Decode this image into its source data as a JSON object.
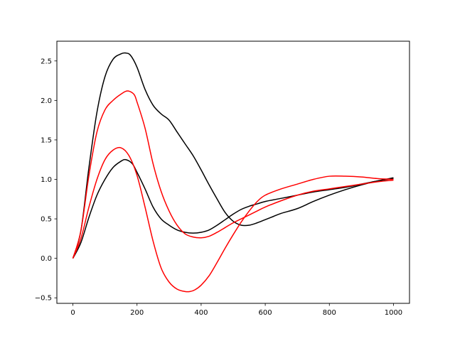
{
  "chart_data": {
    "type": "line",
    "title": "",
    "xlabel": "",
    "ylabel": "",
    "xlim": [
      -50,
      1050
    ],
    "ylim": [
      -0.57,
      2.75
    ],
    "grid": false,
    "legend": null,
    "xticks": [
      0,
      200,
      400,
      600,
      800,
      1000
    ],
    "yticks": [
      -0.5,
      0.0,
      0.5,
      1.0,
      1.5,
      2.0,
      2.5
    ],
    "xtick_labels": [
      "0",
      "200",
      "400",
      "600",
      "800",
      "1000"
    ],
    "ytick_labels": [
      "−0.5",
      "0.0",
      "0.5",
      "1.0",
      "1.5",
      "2.0",
      "2.5"
    ],
    "series": [
      {
        "color": "#000000",
        "x": [
          0,
          25,
          50,
          75,
          100,
          125,
          150,
          165,
          180,
          200,
          225,
          250,
          275,
          300,
          325,
          350,
          375,
          400,
          425,
          450,
          475,
          500,
          525,
          550,
          575,
          600,
          625,
          650,
          700,
          750,
          800,
          850,
          900,
          950,
          1000
        ],
        "y": [
          0,
          0.35,
          1.15,
          1.85,
          2.3,
          2.52,
          2.59,
          2.6,
          2.57,
          2.42,
          2.14,
          1.94,
          1.83,
          1.75,
          1.6,
          1.45,
          1.3,
          1.12,
          0.93,
          0.75,
          0.58,
          0.47,
          0.42,
          0.42,
          0.45,
          0.49,
          0.53,
          0.57,
          0.63,
          0.72,
          0.8,
          0.87,
          0.93,
          0.98,
          1.02
        ]
      },
      {
        "color": "#000000",
        "x": [
          0,
          25,
          50,
          75,
          100,
          125,
          150,
          165,
          185,
          200,
          225,
          250,
          275,
          300,
          325,
          350,
          375,
          400,
          425,
          450,
          475,
          500,
          525,
          550,
          575,
          600,
          650,
          700,
          750,
          800,
          850,
          900,
          950,
          1000
        ],
        "y": [
          0,
          0.2,
          0.52,
          0.8,
          1.0,
          1.15,
          1.23,
          1.25,
          1.2,
          1.09,
          0.88,
          0.65,
          0.5,
          0.42,
          0.36,
          0.33,
          0.32,
          0.33,
          0.36,
          0.42,
          0.49,
          0.56,
          0.62,
          0.66,
          0.69,
          0.72,
          0.76,
          0.8,
          0.84,
          0.87,
          0.9,
          0.94,
          0.98,
          1.01
        ]
      },
      {
        "color": "#ff0000",
        "x": [
          0,
          25,
          50,
          75,
          100,
          125,
          150,
          170,
          190,
          200,
          225,
          250,
          275,
          300,
          325,
          350,
          375,
          400,
          425,
          450,
          475,
          500,
          525,
          550,
          575,
          600,
          650,
          700,
          750,
          800,
          850,
          900,
          950,
          1000
        ],
        "y": [
          0,
          0.35,
          1.05,
          1.6,
          1.88,
          2.0,
          2.08,
          2.12,
          2.08,
          1.98,
          1.65,
          1.2,
          0.85,
          0.6,
          0.42,
          0.31,
          0.27,
          0.26,
          0.28,
          0.33,
          0.39,
          0.45,
          0.5,
          0.55,
          0.6,
          0.65,
          0.73,
          0.8,
          0.85,
          0.88,
          0.91,
          0.94,
          0.97,
          0.99
        ]
      },
      {
        "color": "#ff0000",
        "x": [
          0,
          25,
          50,
          75,
          100,
          125,
          150,
          175,
          200,
          225,
          250,
          275,
          300,
          325,
          350,
          365,
          380,
          400,
          425,
          450,
          475,
          500,
          525,
          550,
          575,
          600,
          650,
          700,
          750,
          800,
          850,
          900,
          950,
          1000
        ],
        "y": [
          0,
          0.25,
          0.65,
          1.0,
          1.25,
          1.37,
          1.4,
          1.3,
          1.05,
          0.65,
          0.22,
          -0.12,
          -0.3,
          -0.39,
          -0.42,
          -0.42,
          -0.4,
          -0.34,
          -0.22,
          -0.05,
          0.13,
          0.3,
          0.46,
          0.6,
          0.72,
          0.8,
          0.88,
          0.94,
          1.0,
          1.04,
          1.04,
          1.03,
          1.01,
          1.0
        ]
      }
    ]
  }
}
